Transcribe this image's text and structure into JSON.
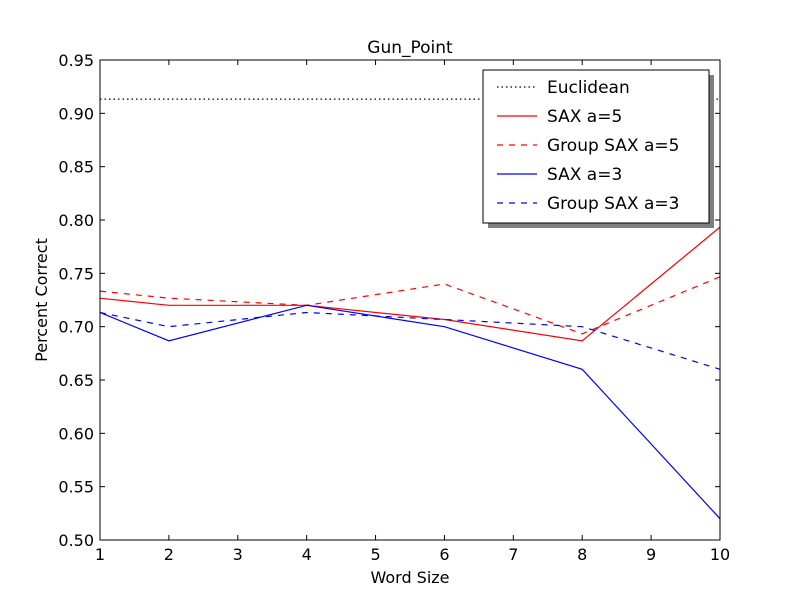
{
  "chart_data": {
    "type": "line",
    "title": "Gun_Point",
    "xlabel": "Word Size",
    "ylabel": "Percent Correct",
    "xlim": [
      1,
      10
    ],
    "ylim": [
      0.5,
      0.95
    ],
    "xticks": [
      "1",
      "2",
      "3",
      "4",
      "5",
      "6",
      "7",
      "8",
      "9",
      "10"
    ],
    "yticks": [
      "0.50",
      "0.55",
      "0.60",
      "0.65",
      "0.70",
      "0.75",
      "0.80",
      "0.85",
      "0.90",
      "0.95"
    ],
    "grid": false,
    "legend_position": "top-right",
    "series": [
      {
        "name": "Euclidean",
        "color": "#000000",
        "style": "dotted",
        "x": [
          1,
          10
        ],
        "y": [
          0.9133,
          0.9133
        ]
      },
      {
        "name": "SAX a=5",
        "color": "#ff0000",
        "style": "solid",
        "x": [
          1,
          2,
          4,
          6,
          8,
          10
        ],
        "y": [
          0.7267,
          0.72,
          0.72,
          0.7067,
          0.6867,
          0.7933
        ]
      },
      {
        "name": "Group SAX a=5",
        "color": "#ff0000",
        "style": "dashed",
        "x": [
          1,
          2,
          4,
          6,
          8,
          10
        ],
        "y": [
          0.7333,
          0.7267,
          0.72,
          0.74,
          0.6933,
          0.7467
        ]
      },
      {
        "name": "SAX a=3",
        "color": "#0000ff",
        "style": "solid",
        "x": [
          1,
          2,
          4,
          6,
          8,
          10
        ],
        "y": [
          0.7133,
          0.6867,
          0.72,
          0.7,
          0.66,
          0.52
        ]
      },
      {
        "name": "Group SAX a=3",
        "color": "#0000ff",
        "style": "dashed",
        "x": [
          1,
          2,
          4,
          6,
          8,
          10
        ],
        "y": [
          0.7133,
          0.7,
          0.7133,
          0.7067,
          0.7,
          0.66
        ]
      }
    ]
  }
}
